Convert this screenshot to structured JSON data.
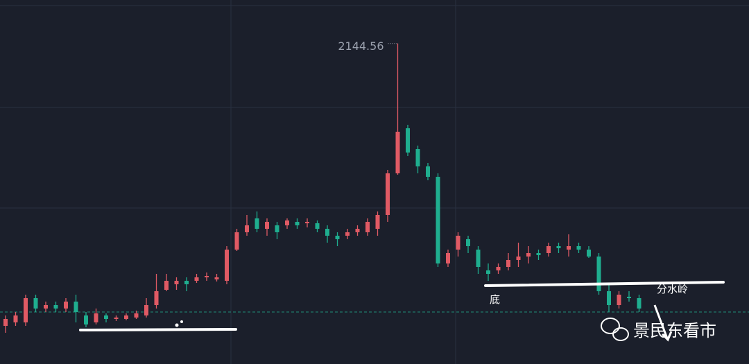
{
  "chart_data": {
    "type": "candlestick",
    "open": [
      1330,
      1340,
      1340,
      1410,
      1380,
      1390,
      1380,
      1400,
      1360,
      1340,
      1360,
      1350,
      1350,
      1354,
      1360,
      1390,
      1434,
      1450,
      1460,
      1460,
      1470,
      1464,
      1460,
      1550,
      1600,
      1640,
      1610,
      1620,
      1620,
      1630,
      1626,
      1626,
      1610,
      1590,
      1590,
      1600,
      1600,
      1610,
      1650,
      1770,
      1900,
      1840,
      1790,
      1760,
      1510,
      1550,
      1580,
      1550,
      1490,
      1490,
      1500,
      1520,
      1530,
      1540,
      1540,
      1560,
      1550,
      1560,
      1550,
      1530,
      1430,
      1390,
      1414,
      1410
    ],
    "high": [
      1360,
      1370,
      1420,
      1420,
      1400,
      1400,
      1410,
      1420,
      1370,
      1380,
      1366,
      1360,
      1366,
      1374,
      1410,
      1480,
      1480,
      1470,
      1470,
      1480,
      1484,
      1480,
      1560,
      1610,
      1650,
      1660,
      1640,
      1630,
      1640,
      1640,
      1640,
      1634,
      1620,
      1600,
      1610,
      1620,
      1640,
      1660,
      1780,
      2144.56,
      1910,
      1850,
      1800,
      1770,
      1550,
      1600,
      1590,
      1560,
      1510,
      1510,
      1540,
      1570,
      1560,
      1550,
      1570,
      1570,
      1594,
      1570,
      1560,
      1540,
      1450,
      1430,
      1430,
      1420
    ],
    "low": [
      1310,
      1330,
      1330,
      1370,
      1370,
      1370,
      1370,
      1340,
      1326,
      1334,
      1340,
      1344,
      1346,
      1350,
      1354,
      1380,
      1430,
      1434,
      1430,
      1454,
      1460,
      1458,
      1450,
      1546,
      1590,
      1600,
      1590,
      1580,
      1610,
      1610,
      1614,
      1600,
      1570,
      1560,
      1580,
      1590,
      1590,
      1590,
      1630,
      1766,
      1820,
      1770,
      1750,
      1500,
      1500,
      1530,
      1540,
      1480,
      1460,
      1480,
      1490,
      1500,
      1510,
      1520,
      1530,
      1540,
      1530,
      1540,
      1526,
      1420,
      1370,
      1380,
      1400,
      1370
    ],
    "close": [
      1350,
      1360,
      1410,
      1380,
      1390,
      1380,
      1400,
      1370,
      1334,
      1366,
      1350,
      1354,
      1360,
      1366,
      1390,
      1430,
      1460,
      1460,
      1450,
      1470,
      1474,
      1470,
      1550,
      1600,
      1620,
      1610,
      1630,
      1600,
      1634,
      1620,
      1630,
      1610,
      1590,
      1580,
      1600,
      1610,
      1630,
      1650,
      1770,
      1890,
      1830,
      1790,
      1760,
      1510,
      1540,
      1590,
      1560,
      1500,
      1480,
      1500,
      1520,
      1530,
      1540,
      1534,
      1560,
      1554,
      1560,
      1550,
      1530,
      1430,
      1390,
      1420,
      1410,
      1380
    ],
    "up_color": "#e05a64",
    "down_color": "#1fae8f",
    "ylim": [
      1220,
      2270
    ],
    "last_price_line": 1370,
    "annotations": {
      "bottom": "底",
      "watershed": "分水岭"
    },
    "watermark": "景民东看市"
  }
}
